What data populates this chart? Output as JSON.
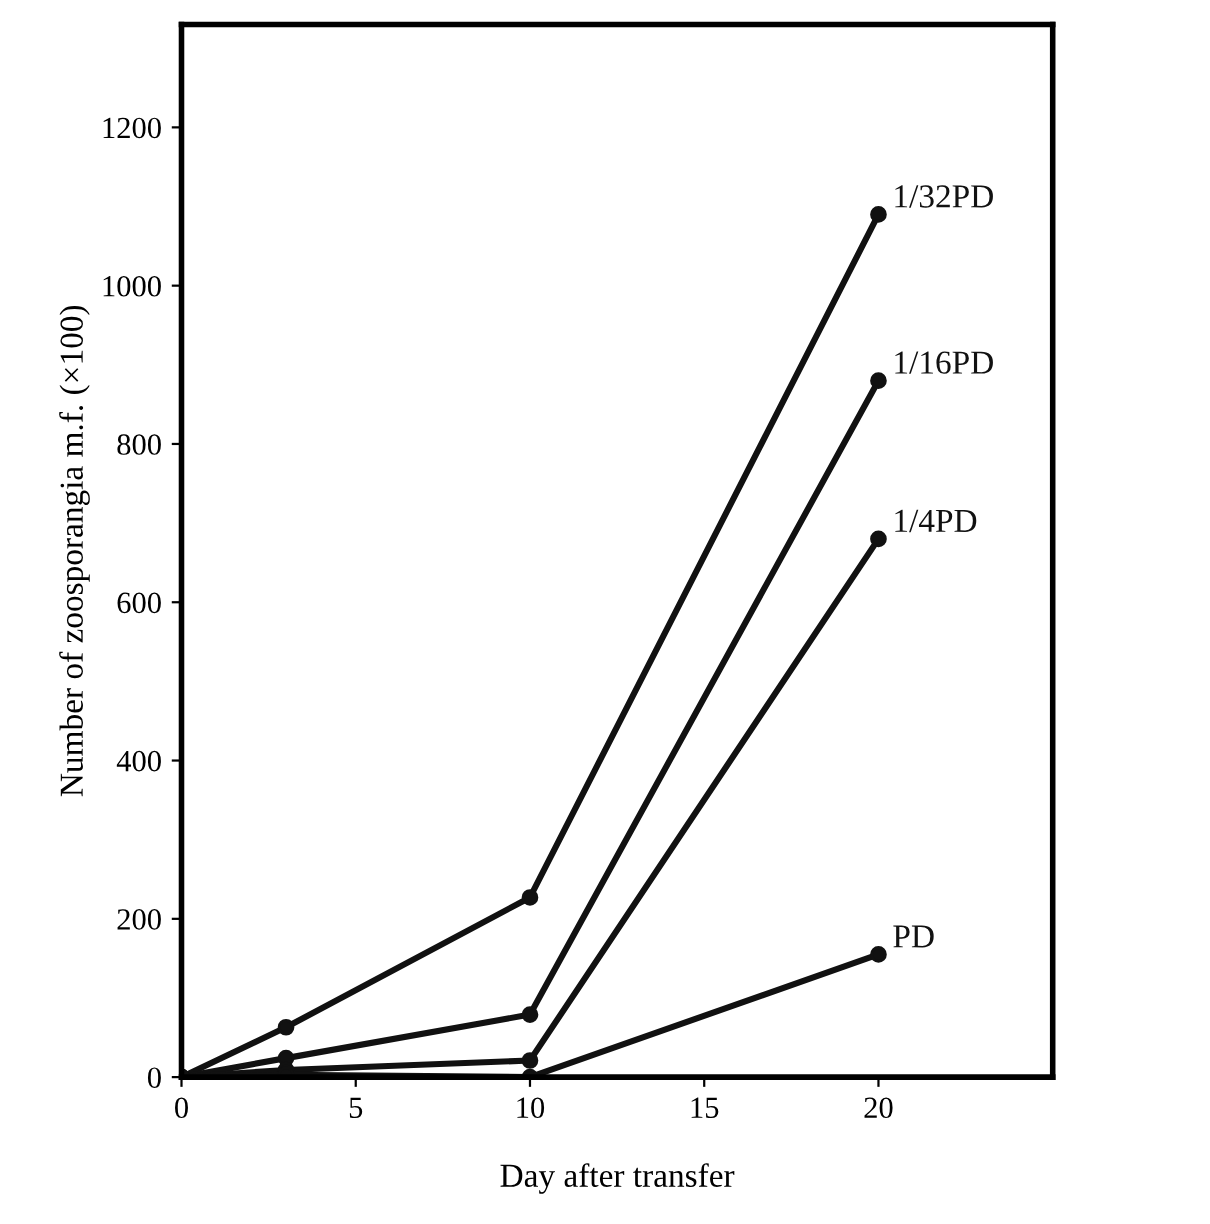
{
  "chart_data": {
    "type": "line",
    "xlabel": "Day after transfer",
    "ylabel": "Number of zoosporangia m.f. (×100)",
    "x": [
      0,
      3,
      10,
      20
    ],
    "series": [
      {
        "name": "1/32PD",
        "color": "#111111",
        "values": [
          0,
          63,
          227,
          1090
        ]
      },
      {
        "name": "1/16PD",
        "color": "#111111",
        "values": [
          0,
          24,
          79,
          880
        ]
      },
      {
        "name": "1/4PD",
        "color": "#111111",
        "values": [
          0,
          9,
          21,
          680
        ]
      },
      {
        "name": "PD",
        "color": "#111111",
        "values": [
          0,
          3,
          0,
          155
        ]
      }
    ],
    "xlim": [
      0,
      25
    ],
    "xticks": [
      0,
      5,
      10,
      15,
      20
    ],
    "ylim": [
      0,
      1330
    ],
    "yticks": [
      0,
      200,
      400,
      600,
      800,
      1000,
      1200
    ],
    "marker": "circle",
    "line_style": "solid",
    "grid": false,
    "legend": false
  }
}
